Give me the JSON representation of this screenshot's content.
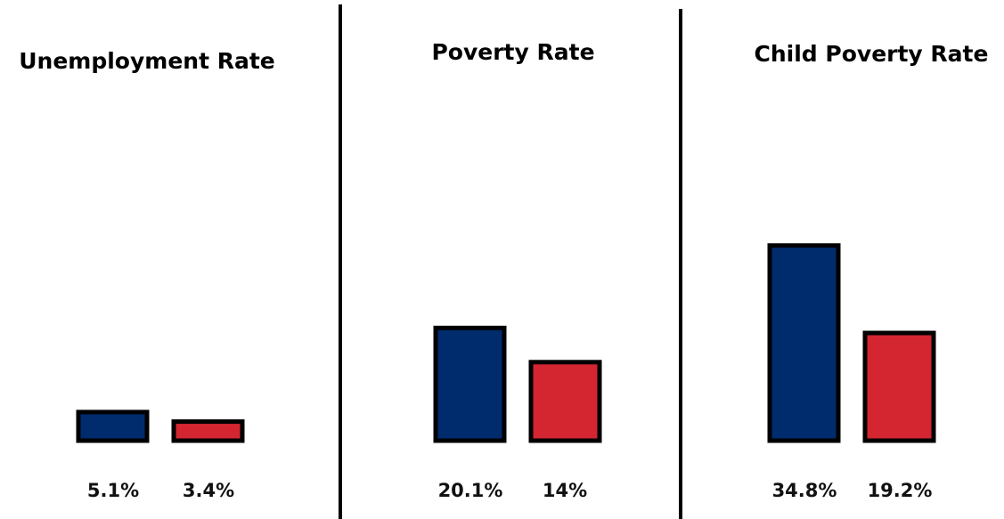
{
  "chart_data": [
    {
      "type": "bar",
      "title": "Unemployment Rate",
      "categories": [
        "",
        ""
      ],
      "values": [
        5.1,
        3.4
      ],
      "value_labels": [
        "5.1%",
        "3.4%"
      ],
      "unit": "%",
      "colors": [
        "#002c6e",
        "#d42631"
      ],
      "ylim": [
        0,
        40
      ],
      "grid": false,
      "legend": "none"
    },
    {
      "type": "bar",
      "title": "Poverty Rate",
      "categories": [
        "",
        ""
      ],
      "values": [
        20.1,
        14
      ],
      "value_labels": [
        "20.1%",
        "14%"
      ],
      "unit": "%",
      "colors": [
        "#002c6e",
        "#d42631"
      ],
      "ylim": [
        0,
        40
      ],
      "grid": false,
      "legend": "none"
    },
    {
      "type": "bar",
      "title": "Child Poverty Rate",
      "categories": [
        "",
        ""
      ],
      "values": [
        34.8,
        19.2
      ],
      "value_labels": [
        "34.8%",
        "19.2%"
      ],
      "unit": "%",
      "colors": [
        "#002c6e",
        "#d42631"
      ],
      "ylim": [
        0,
        40
      ],
      "grid": false,
      "legend": "none"
    }
  ],
  "colors": {
    "bar_outline": "#000000",
    "divider": "#000000",
    "background": "#ffffff"
  }
}
